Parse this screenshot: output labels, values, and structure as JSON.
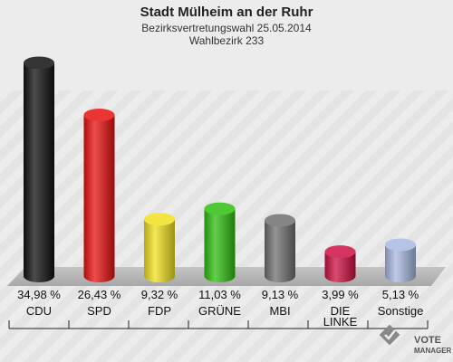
{
  "header": {
    "title": "Stadt Mülheim an der Ruhr",
    "subtitle": "Bezirksvertretungswahl 25.05.2014",
    "district": "Wahlbezirk 233"
  },
  "brand": {
    "line1": "VOTE",
    "line2": "MANAGER"
  },
  "chart_data": {
    "type": "bar",
    "title": "Stadt Mülheim an der Ruhr",
    "subtitle": "Bezirksvertretungswahl 25.05.2014",
    "district": "Wahlbezirk 233",
    "categories": [
      "CDU",
      "SPD",
      "FDP",
      "GRÜNE",
      "MBI",
      "DIE LINKE",
      "Sonstige"
    ],
    "category_lines": [
      [
        "CDU"
      ],
      [
        "SPD"
      ],
      [
        "FDP"
      ],
      [
        "GRÜNE"
      ],
      [
        "MBI"
      ],
      [
        "DIE",
        "LINKE"
      ],
      [
        "Sonstige"
      ]
    ],
    "values": [
      34.98,
      26.43,
      9.32,
      11.03,
      9.13,
      3.99,
      5.13
    ],
    "value_labels": [
      "34,98 %",
      "26,43 %",
      "9,32 %",
      "11,03 %",
      "9,13 %",
      "3,99 %",
      "5,13 %"
    ],
    "colors": [
      "#111111",
      "#e8110f",
      "#f0e020",
      "#2fbf10",
      "#707070",
      "#cc1040",
      "#a8b8e0"
    ],
    "ylim": [
      0,
      36
    ],
    "grid": false,
    "legend": "none"
  }
}
